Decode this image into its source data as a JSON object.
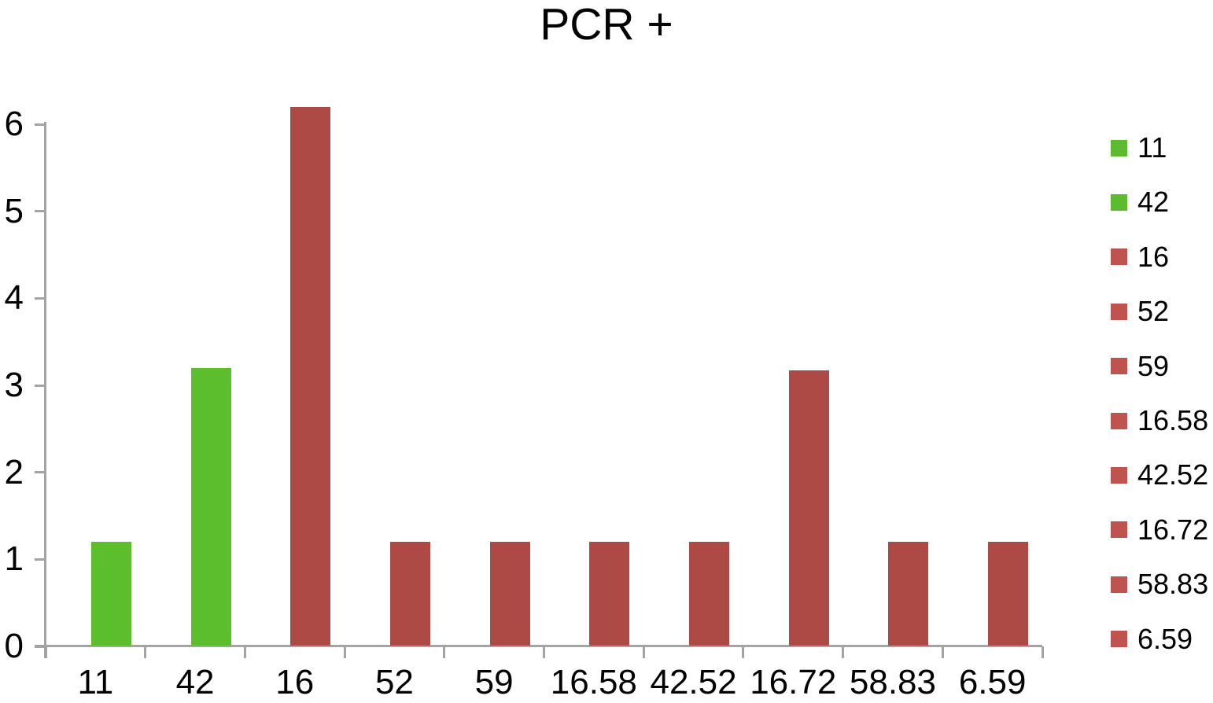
{
  "chart_data": {
    "type": "bar",
    "title": "PCR +",
    "categories": [
      "11",
      "42",
      "16",
      "52",
      "59",
      "16.58",
      "42.52",
      "16.72",
      "58.83",
      "6.59"
    ],
    "values": [
      1.2,
      3.2,
      6.2,
      1.2,
      1.2,
      1.2,
      1.2,
      3.17,
      1.2,
      1.2
    ],
    "bar_colors": [
      "#5cbe2d",
      "#5cbe2d",
      "#ad4a46",
      "#ad4a46",
      "#ad4a46",
      "#ad4a46",
      "#ad4a46",
      "#ad4a46",
      "#ad4a46",
      "#ad4a46"
    ],
    "xlabel": "",
    "ylabel": "",
    "ylim": [
      0,
      6
    ],
    "yticks": [
      "0",
      "1",
      "2",
      "3",
      "4",
      "5",
      "6"
    ],
    "grid": false,
    "legend_position": "right",
    "legend": [
      {
        "label": "11",
        "color": "#5cbb2f"
      },
      {
        "label": "42",
        "color": "#5cbb2f"
      },
      {
        "label": "16",
        "color": "#be534f"
      },
      {
        "label": "52",
        "color": "#be534f"
      },
      {
        "label": "59",
        "color": "#be534f"
      },
      {
        "label": "16.58",
        "color": "#be534f"
      },
      {
        "label": "42.52",
        "color": "#be534f"
      },
      {
        "label": "16.72",
        "color": "#be534f"
      },
      {
        "label": "58.83",
        "color": "#be534f"
      },
      {
        "label": "6.59",
        "color": "#be534f"
      }
    ],
    "colors": {
      "axis": "#a3a3a3",
      "text": "#000000",
      "background": "#ffffff"
    }
  }
}
